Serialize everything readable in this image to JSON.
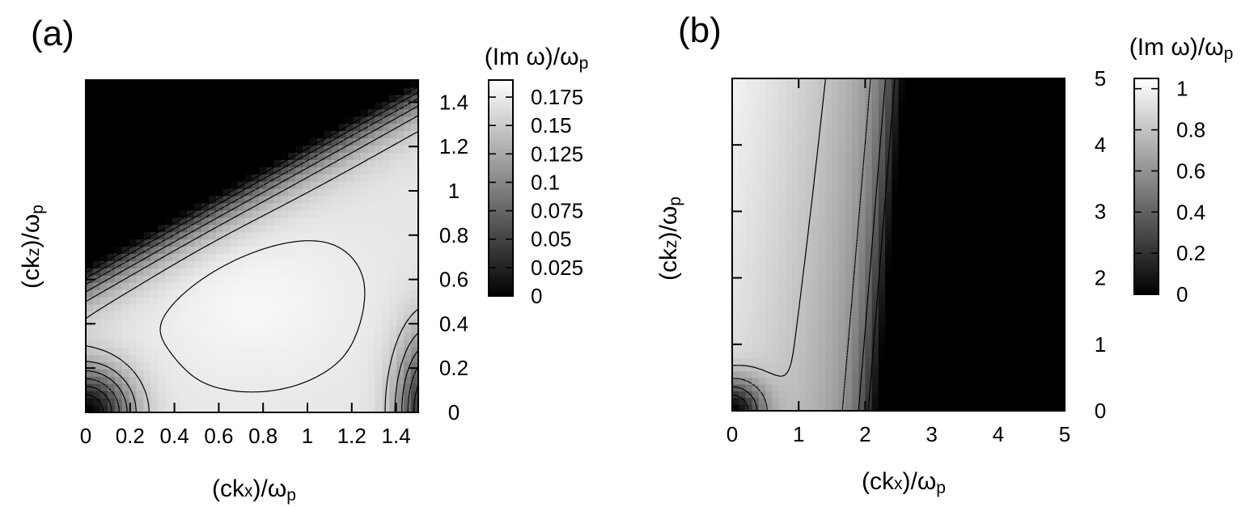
{
  "chart_data": [
    {
      "type": "heatmap",
      "panel_label": "(a)",
      "xlabel": {
        "main": "(ck",
        "sub": "x",
        "rest": ")/ω",
        "sub2": "p"
      },
      "ylabel": {
        "main": "(ck",
        "sub": "z",
        "rest": ")/ω",
        "sub2": "p"
      },
      "colorbar_title": {
        "main": "(Im ω)/ω",
        "sub": "p"
      },
      "xlim": [
        0,
        1.5
      ],
      "ylim": [
        0,
        1.5
      ],
      "xticks": [
        0,
        0.2,
        0.4,
        0.6,
        0.8,
        1.0,
        1.2,
        1.4
      ],
      "xtick_labels": [
        "0",
        "0.2",
        "0.4",
        "0.6",
        "0.8",
        "1",
        "1.2",
        "1.4"
      ],
      "yticks": [
        0,
        0.2,
        0.4,
        0.6,
        0.8,
        1.0,
        1.2,
        1.4
      ],
      "ytick_labels": [
        "0",
        "0.2",
        "0.4",
        "0.6",
        "0.8",
        "1",
        "1.2",
        "1.4"
      ],
      "zlim": [
        0,
        0.19
      ],
      "colorbar_ticks": [
        0,
        0.025,
        0.05,
        0.075,
        0.1,
        0.125,
        0.15,
        0.175
      ],
      "colorbar_tick_labels": [
        "0",
        "0.025",
        "0.05",
        "0.075",
        "0.1",
        "0.125",
        "0.15",
        "0.175"
      ],
      "colormap": "gray",
      "description": "Growth rate is zero (black) above roughly kz > 0.65 + 0.55*kx for kx < 1.5; a bright plateau (~0.175) spans the middle; it falls off near the origin and near kx = 1.5, kz = 0."
    },
    {
      "type": "heatmap",
      "panel_label": "(b)",
      "xlabel": {
        "main": "(ck",
        "sub": "x",
        "rest": ")/ω",
        "sub2": "p"
      },
      "ylabel": {
        "main": "(ck",
        "sub": "z",
        "rest": ")/ω",
        "sub2": "p"
      },
      "colorbar_title": {
        "main": "(Im ω)/ω",
        "sub": "p"
      },
      "xlim": [
        0,
        5
      ],
      "ylim": [
        0,
        5
      ],
      "xticks": [
        0,
        1,
        2,
        3,
        4,
        5
      ],
      "xtick_labels": [
        "0",
        "1",
        "2",
        "3",
        "4",
        "5"
      ],
      "yticks": [
        0,
        1,
        2,
        3,
        4,
        5
      ],
      "ytick_labels": [
        "0",
        "1",
        "2",
        "3",
        "4",
        "5"
      ],
      "zlim": [
        0,
        1.05
      ],
      "colorbar_ticks": [
        0,
        0.2,
        0.4,
        0.6,
        0.8,
        1.0
      ],
      "colorbar_tick_labels": [
        "0",
        "0.2",
        "0.4",
        "0.6",
        "0.8",
        "1"
      ],
      "colormap": "gray",
      "description": "Growth rate is large (~1) for small kx and large kz, decreasing with kx; it vanishes (black) beyond kx ≈ 2.0–2.5."
    }
  ]
}
